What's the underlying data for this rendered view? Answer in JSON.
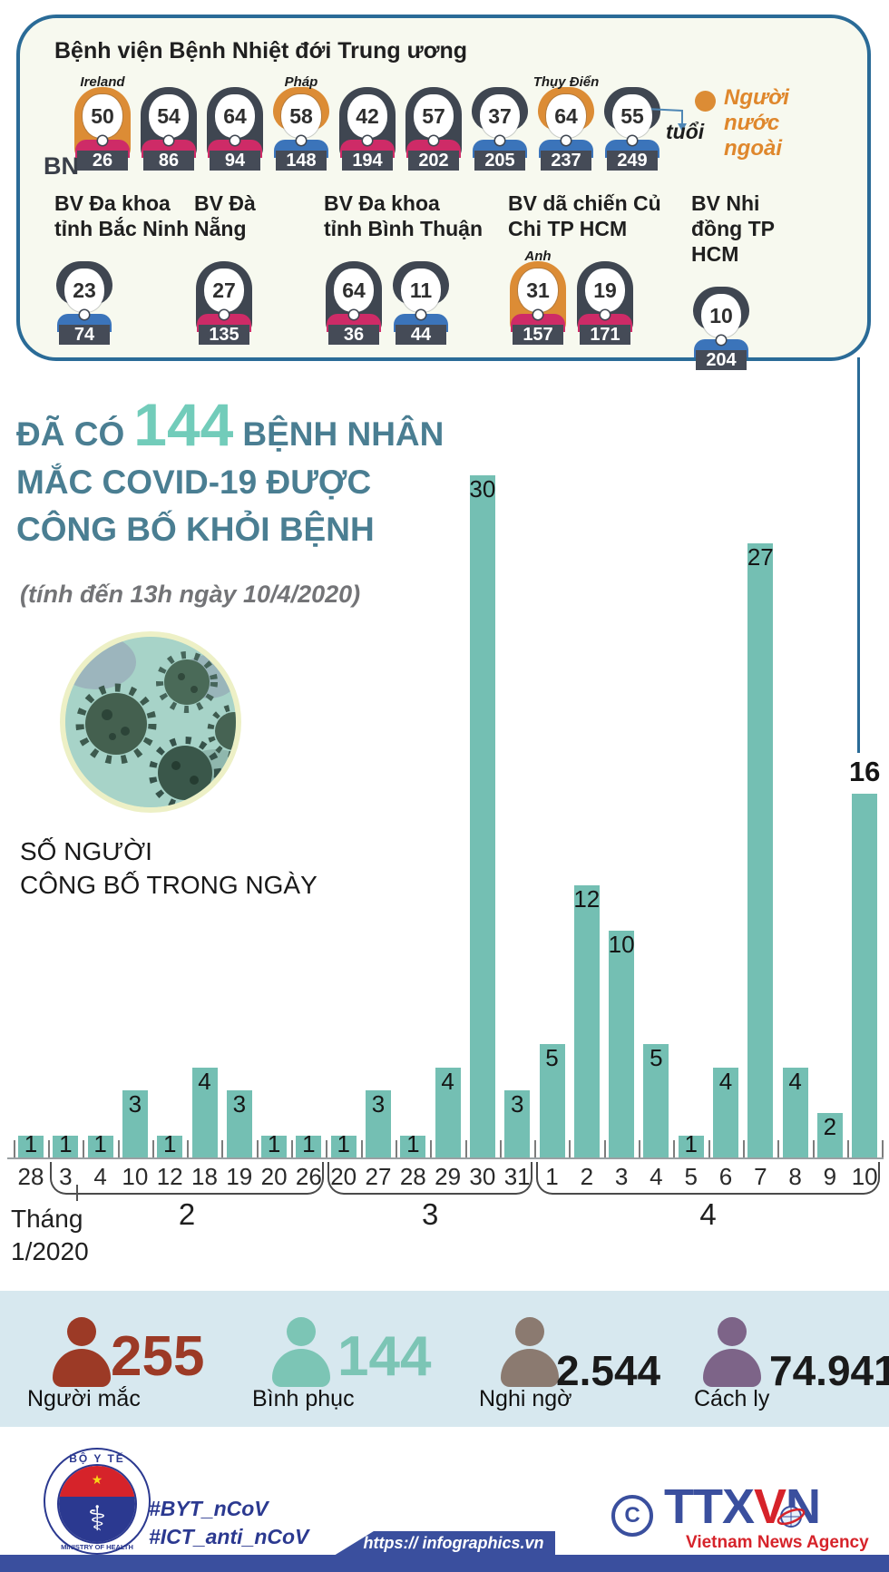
{
  "colors": {
    "bar": "#74bfb3",
    "box_border": "#2a6b97",
    "headline_teal": "#4a7e92",
    "headline_mint": "#72ccba",
    "foreign_orange": "#dc8c35",
    "shirt_pink": "#ce2b67",
    "shirt_blue": "#3b74ba",
    "footer_blue": "#3a4f9e",
    "band_bg": "#d7e8ef"
  },
  "top_box": {
    "title": "Bệnh viện Bệnh Nhiệt đới Trung ương",
    "bn_label": "BN",
    "age_pointer_label": "tuổi",
    "legend_label": "Người nước ngoài",
    "row1_patients": [
      {
        "age": "50",
        "bn": "26",
        "country": "Ireland",
        "gender": "female",
        "foreign": true,
        "shirt": "pink"
      },
      {
        "age": "54",
        "bn": "86",
        "gender": "female",
        "shirt": "pink"
      },
      {
        "age": "64",
        "bn": "94",
        "gender": "female",
        "shirt": "pink"
      },
      {
        "age": "58",
        "bn": "148",
        "country": "Pháp",
        "gender": "male",
        "foreign": true,
        "shirt": "blue"
      },
      {
        "age": "42",
        "bn": "194",
        "gender": "female",
        "shirt": "pink"
      },
      {
        "age": "57",
        "bn": "202",
        "gender": "female",
        "shirt": "pink"
      },
      {
        "age": "37",
        "bn": "205",
        "gender": "male",
        "shirt": "blue"
      },
      {
        "age": "64",
        "bn": "237",
        "country": "Thụy Điển",
        "gender": "male",
        "foreign": true,
        "shirt": "blue"
      },
      {
        "age": "55",
        "bn": "249",
        "gender": "male",
        "shirt": "blue"
      }
    ],
    "hospital_groups": [
      {
        "hospital": "BV Đa khoa tỉnh Bắc Ninh",
        "patients": [
          {
            "age": "23",
            "bn": "74",
            "gender": "male",
            "shirt": "blue"
          }
        ]
      },
      {
        "hospital": "BV Đà Nẵng",
        "patients": [
          {
            "age": "27",
            "bn": "135",
            "gender": "female",
            "shirt": "pink"
          }
        ]
      },
      {
        "hospital": "BV Đa khoa tỉnh Bình Thuận",
        "patients": [
          {
            "age": "64",
            "bn": "36",
            "gender": "female",
            "shirt": "pink"
          },
          {
            "age": "11",
            "bn": "44",
            "gender": "male",
            "shirt": "blue"
          }
        ]
      },
      {
        "hospital": "BV dã chiến Củ Chi TP HCM",
        "patients": [
          {
            "age": "31",
            "bn": "157",
            "country": "Anh",
            "gender": "female",
            "foreign": true,
            "shirt": "pink"
          },
          {
            "age": "19",
            "bn": "171",
            "gender": "female",
            "shirt": "pink"
          }
        ]
      },
      {
        "hospital": "BV Nhi đồng TP HCM",
        "patients": [
          {
            "age": "10",
            "bn": "204",
            "gender": "male",
            "shirt": "blue"
          }
        ]
      }
    ]
  },
  "headline": {
    "prefix": "ĐÃ CÓ",
    "count": "144",
    "suffix": "BỆNH NHÂN",
    "line2": "MẮC COVID-19 ĐƯỢC",
    "line3": "CÔNG BỐ KHỎI BỆNH",
    "note": "(tính đến 13h ngày 10/4/2020)"
  },
  "chart_data": {
    "type": "bar",
    "title": "SỐ NGƯỜI CÔNG BỐ TRONG NGÀY",
    "title_lines": [
      "SỐ NGƯỜI",
      "CÔNG BỐ TRONG NGÀY"
    ],
    "categories": [
      "28",
      "3",
      "4",
      "10",
      "12",
      "18",
      "19",
      "20",
      "26",
      "20",
      "27",
      "28",
      "29",
      "30",
      "31",
      "1",
      "2",
      "3",
      "4",
      "5",
      "6",
      "7",
      "8",
      "9",
      "10"
    ],
    "values": [
      1,
      1,
      1,
      3,
      1,
      4,
      3,
      1,
      1,
      1,
      3,
      1,
      4,
      30,
      3,
      5,
      12,
      10,
      5,
      1,
      4,
      27,
      4,
      2,
      16
    ],
    "month_groups": [
      {
        "label": "Tháng 1/2020",
        "label_lines": [
          "Tháng",
          "1/2020"
        ],
        "start": 0,
        "end": 0,
        "bracket": false
      },
      {
        "label": "2",
        "start": 1,
        "end": 8,
        "bracket": true
      },
      {
        "label": "3",
        "start": 9,
        "end": 14,
        "bracket": true
      },
      {
        "label": "4",
        "start": 15,
        "end": 24,
        "bracket": true
      }
    ],
    "bar_color": "#74bfb3",
    "ylim": [
      0,
      30
    ],
    "grid": false,
    "highlight_last_value": "16"
  },
  "summary_stats": [
    {
      "value": "255",
      "label": "Người mắc",
      "icon_color": "#9c3a26",
      "value_color": "#9c3a26"
    },
    {
      "value": "144",
      "label": "Bình phục",
      "icon_color": "#7cc5b5",
      "value_color": "#7cc5b5"
    },
    {
      "value": "2.544",
      "label": "Nghi ngờ",
      "icon_color": "#8b7a70",
      "value_color": "#1a1a1a"
    },
    {
      "value": "74.941",
      "label": "Cách ly",
      "icon_color": "#7d6488",
      "value_color": "#1a1a1a"
    }
  ],
  "footer": {
    "moh_top": "BỘ Y TẾ",
    "moh_bottom": "MINISTRY OF HEALTH",
    "hashtags": [
      "#BYT_nCoV",
      "#ICT_anti_nCoV"
    ],
    "copyright": "C",
    "ttxvn_parts": [
      "TTX",
      "V",
      "N"
    ],
    "agency": "Vietnam News Agency",
    "url": "https:// infographics.vn"
  }
}
